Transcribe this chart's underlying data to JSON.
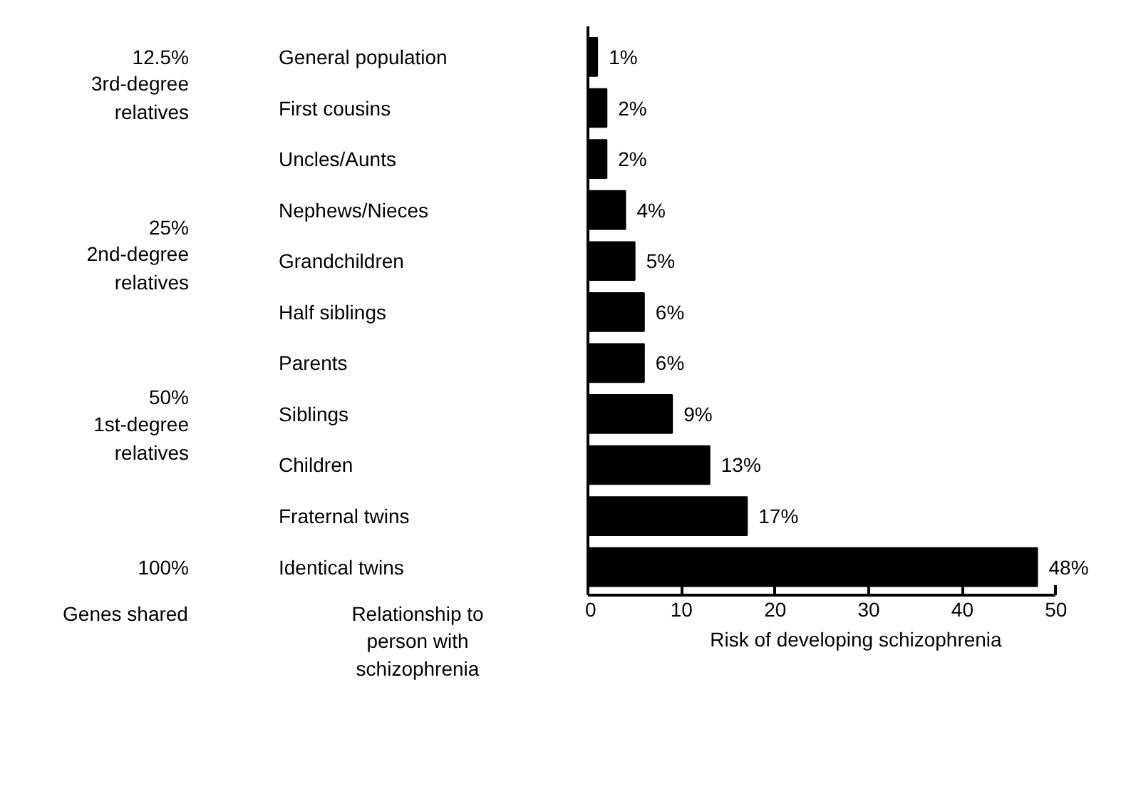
{
  "chart_data": {
    "type": "bar",
    "orientation": "horizontal",
    "xlabel": "Risk of developing schizophrenia",
    "ylabel": "Relationship to person with schizophrenia",
    "categories": [
      "General population",
      "First cousins",
      "Uncles/Aunts",
      "Nephews/Nieces",
      "Grandchildren",
      "Half siblings",
      "Parents",
      "Siblings",
      "Children",
      "Fraternal twins",
      "Identical twins"
    ],
    "values": [
      1,
      2,
      2,
      4,
      5,
      6,
      6,
      9,
      13,
      17,
      48
    ],
    "color": "#000000",
    "value_labels": [
      "1%",
      "2%",
      "2%",
      "4%",
      "5%",
      "6%",
      "6%",
      "9%",
      "13%",
      "17%",
      "48%"
    ],
    "xlim": [
      0,
      50
    ],
    "xticks": [
      0,
      10,
      20,
      30,
      40,
      50
    ],
    "grid": false,
    "annotations": [
      "12.5%",
      "3rd-degree relatives",
      "25%",
      "2nd-degree relatives",
      "50%",
      "1st-degree relatives",
      "100%",
      "Genes shared"
    ]
  }
}
